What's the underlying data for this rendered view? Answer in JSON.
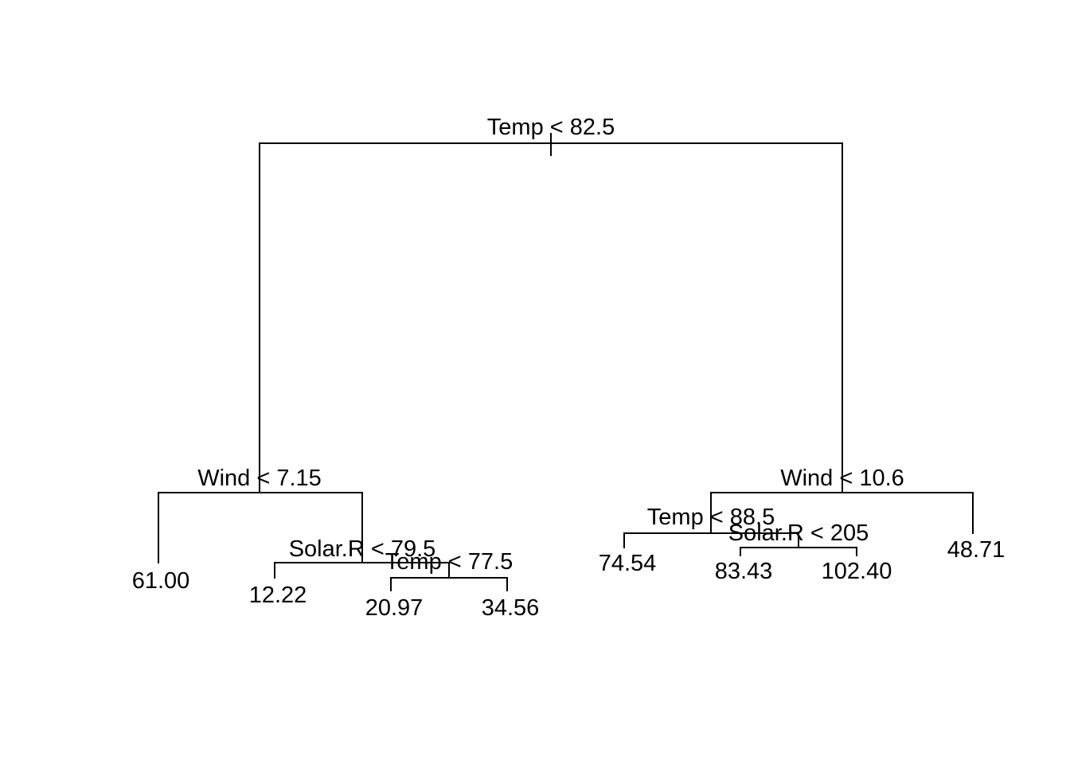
{
  "tree": {
    "nodes": [
      {
        "id": "n1",
        "split": "Temp < 82.5"
      },
      {
        "id": "n2",
        "split": "Wind < 7.15"
      },
      {
        "id": "n3",
        "split": "Wind < 10.6"
      },
      {
        "id": "n4",
        "leaf": "61.00"
      },
      {
        "id": "n5",
        "split": "Solar.R < 79.5"
      },
      {
        "id": "n6",
        "leaf": "12.22"
      },
      {
        "id": "n7",
        "split": "Temp < 77.5"
      },
      {
        "id": "n8",
        "leaf": "20.97"
      },
      {
        "id": "n9",
        "leaf": "34.56"
      },
      {
        "id": "n10",
        "split": "Temp < 88.5"
      },
      {
        "id": "n11",
        "leaf": "48.71"
      },
      {
        "id": "n12",
        "leaf": "74.54"
      },
      {
        "id": "n13",
        "split": "Solar.R < 205"
      },
      {
        "id": "n14",
        "leaf": "83.43"
      },
      {
        "id": "n15",
        "leaf": "102.40"
      }
    ],
    "edges": [
      [
        "n1",
        "n2"
      ],
      [
        "n1",
        "n3"
      ],
      [
        "n2",
        "n4"
      ],
      [
        "n2",
        "n5"
      ],
      [
        "n5",
        "n6"
      ],
      [
        "n5",
        "n7"
      ],
      [
        "n7",
        "n8"
      ],
      [
        "n7",
        "n9"
      ],
      [
        "n3",
        "n10"
      ],
      [
        "n3",
        "n11"
      ],
      [
        "n10",
        "n12"
      ],
      [
        "n10",
        "n13"
      ],
      [
        "n13",
        "n14"
      ],
      [
        "n13",
        "n15"
      ]
    ]
  }
}
